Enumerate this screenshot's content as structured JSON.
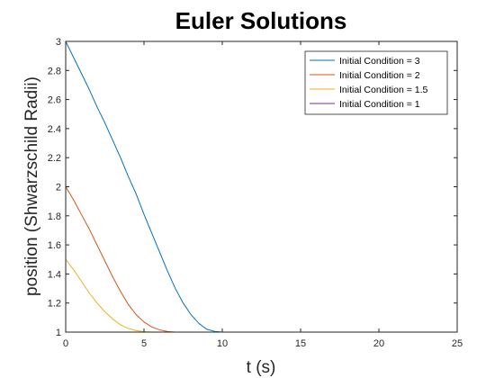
{
  "chart_data": {
    "type": "line",
    "title": "Euler Solutions",
    "xlabel": "t (s)",
    "ylabel": "position (Shwarzschild Radii)",
    "xlim": [
      0,
      25
    ],
    "ylim": [
      1,
      3
    ],
    "xticks": [
      "0",
      "5",
      "10",
      "15",
      "20",
      "25"
    ],
    "yticks": [
      "1",
      "1.2",
      "1.4",
      "1.6",
      "1.8",
      "2",
      "2.2",
      "2.4",
      "2.6",
      "2.8",
      "3"
    ],
    "grid": false,
    "legend_position": "top-right",
    "series": [
      {
        "name": "Initial Condition = 3",
        "color": "#0072BD",
        "x": [
          0,
          0.5,
          1,
          1.5,
          2,
          2.5,
          3,
          3.5,
          4,
          4.5,
          5,
          5.5,
          6,
          6.5,
          7,
          7.5,
          8,
          8.5,
          9,
          9.5,
          10,
          25
        ],
        "y": [
          3.0,
          2.89,
          2.78,
          2.67,
          2.55,
          2.44,
          2.32,
          2.2,
          2.07,
          1.95,
          1.81,
          1.68,
          1.55,
          1.42,
          1.3,
          1.2,
          1.12,
          1.06,
          1.02,
          1.005,
          1.0,
          1.0
        ]
      },
      {
        "name": "Initial Condition = 2",
        "color": "#D95319",
        "x": [
          0,
          0.5,
          1,
          1.5,
          2,
          2.5,
          3,
          3.5,
          4,
          4.5,
          5,
          5.5,
          6,
          6.5,
          7,
          25
        ],
        "y": [
          2.0,
          1.91,
          1.81,
          1.71,
          1.6,
          1.49,
          1.38,
          1.28,
          1.19,
          1.12,
          1.07,
          1.035,
          1.015,
          1.004,
          1.0,
          1.0
        ]
      },
      {
        "name": "Initial Condition = 1.5",
        "color": "#EDB120",
        "x": [
          0,
          0.5,
          1,
          1.5,
          2,
          2.5,
          3,
          3.5,
          4,
          4.5,
          5,
          5.5,
          25
        ],
        "y": [
          1.5,
          1.43,
          1.35,
          1.27,
          1.2,
          1.14,
          1.09,
          1.05,
          1.025,
          1.01,
          1.003,
          1.0,
          1.0
        ]
      },
      {
        "name": "Initial Condition = 1",
        "color": "#7E2F8E",
        "x": [
          0,
          25
        ],
        "y": [
          1.0,
          1.0
        ]
      }
    ]
  }
}
